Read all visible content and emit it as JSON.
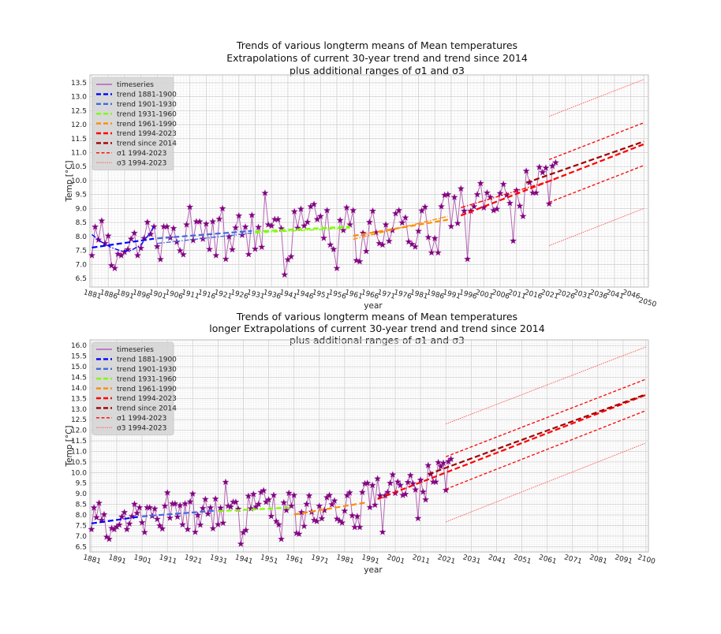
{
  "chart_data": [
    {
      "type": "line",
      "title": [
        "Trends of various longterm means of Mean temperatures",
        "Extrapolations of current 30-year trend and trend since 2014",
        "plus additional ranges of σ1 and σ3"
      ],
      "xlabel": "year",
      "ylabel": "Temp [°C]",
      "xlim": [
        1880.4,
        2051.4
      ],
      "ylim": [
        6.19,
        13.78
      ],
      "xticks": [
        1881,
        1886,
        1891,
        1896,
        1901,
        1906,
        1911,
        1916,
        1921,
        1926,
        1931,
        1936,
        1941,
        1946,
        1951,
        1956,
        1961,
        1966,
        1971,
        1976,
        1981,
        1986,
        1991,
        1996,
        2001,
        2006,
        2011,
        2016,
        2021,
        2026,
        2031,
        2036,
        2041,
        2046,
        2050
      ],
      "yticks": [
        6.5,
        7.0,
        7.5,
        8.0,
        8.5,
        9.0,
        9.5,
        10.0,
        10.5,
        11.0,
        11.5,
        12.0,
        12.5,
        13.0,
        13.5
      ],
      "grid": true,
      "legend_position": "top-left",
      "series_ref": "timeseries",
      "trends": [
        {
          "name": "trend 1881-1900",
          "color": "#0000ff",
          "style": "dashed",
          "x": [
            1881,
            1900
          ],
          "y": [
            7.6,
            7.92
          ]
        },
        {
          "color": "#0000ff",
          "style": "dashdot",
          "x": [
            1881,
            1884,
            1887,
            1890,
            1893,
            1896,
            1899,
            1900
          ],
          "y": [
            8.07,
            7.8,
            7.6,
            7.48,
            7.5,
            7.7,
            8.15,
            8.38
          ]
        },
        {
          "name": "trend 1901-1930",
          "color": "#4169e1",
          "style": "dashed",
          "x": [
            1901,
            1930
          ],
          "y": [
            7.93,
            8.2
          ]
        },
        {
          "color": "#4169e1",
          "style": "dashdot",
          "x": [
            1901,
            1930
          ],
          "y": [
            7.75,
            8.12
          ]
        },
        {
          "name": "trend 1931-1960",
          "color": "#7cfc00",
          "style": "dashed",
          "x": [
            1931,
            1960
          ],
          "y": [
            8.18,
            8.35
          ]
        },
        {
          "color": "#7cfc00",
          "style": "dashdot",
          "x": [
            1931,
            1960
          ],
          "y": [
            8.13,
            8.3
          ]
        },
        {
          "name": "trend 1961-1990",
          "color": "#ff8c00",
          "style": "dashed",
          "x": [
            1961,
            1990
          ],
          "y": [
            8.02,
            8.6
          ]
        },
        {
          "color": "#ff8c00",
          "style": "dashdot",
          "x": [
            1961,
            1990
          ],
          "y": [
            7.9,
            8.72
          ]
        },
        {
          "name": "trend 1994-2023",
          "color": "#ff0000",
          "style": "dashed",
          "x": [
            1994,
            2050
          ],
          "y": [
            8.75,
            11.3
          ]
        },
        {
          "color": "#ff0000",
          "style": "dashdot",
          "x": [
            1994,
            2023
          ],
          "y": [
            9.03,
            10.05
          ]
        },
        {
          "name": "trend since 2014",
          "color": "#a00000",
          "style": "dashed",
          "x": [
            2014,
            2050
          ],
          "y": [
            9.92,
            11.4
          ]
        },
        {
          "name": "σ1 1994-2023",
          "color": "#ff0000",
          "style": "sigma1",
          "x": [
            2021,
            2050
          ],
          "y": [
            10.75,
            12.07
          ]
        },
        {
          "color": "#ff0000",
          "style": "sigma1",
          "x": [
            2021,
            2050
          ],
          "y": [
            9.22,
            10.54
          ]
        },
        {
          "name": "σ3 1994-2023",
          "color": "#ff5050",
          "style": "sigma3",
          "x": [
            2021,
            2050
          ],
          "y": [
            12.3,
            13.62
          ]
        },
        {
          "color": "#ff5050",
          "style": "sigma3",
          "x": [
            2021,
            2050
          ],
          "y": [
            7.67,
            9.0
          ]
        }
      ]
    },
    {
      "type": "line",
      "title": [
        "Trends of various longterm means of Mean temperatures",
        "longer Extrapolations of current 30-year trend and trend since 2014",
        "plus additional ranges of σ1 and σ3"
      ],
      "xlabel": "year",
      "ylabel": "Temp [°C]",
      "xlim": [
        1880.4,
        2101
      ],
      "ylim": [
        6.25,
        16.27
      ],
      "xticks": [
        1881,
        1891,
        1901,
        1911,
        1921,
        1931,
        1941,
        1951,
        1961,
        1971,
        1981,
        1991,
        2001,
        2011,
        2021,
        2031,
        2041,
        2051,
        2061,
        2071,
        2081,
        2091,
        2100
      ],
      "yticks": [
        6.5,
        7.0,
        7.5,
        8.0,
        8.5,
        9.0,
        9.5,
        10.0,
        10.5,
        11.0,
        11.5,
        12.0,
        12.5,
        13.0,
        13.5,
        14.0,
        14.5,
        15.0,
        15.5,
        16.0
      ],
      "grid": true,
      "legend_position": "top-left",
      "series_ref": "timeseries",
      "trends": [
        {
          "name": "trend 1881-1900",
          "color": "#0000ff",
          "style": "dashed",
          "x": [
            1881,
            1900
          ],
          "y": [
            7.6,
            7.92
          ]
        },
        {
          "name": "trend 1901-1930",
          "color": "#4169e1",
          "style": "dashed",
          "x": [
            1901,
            1930
          ],
          "y": [
            7.93,
            8.2
          ]
        },
        {
          "name": "trend 1931-1960",
          "color": "#7cfc00",
          "style": "dashed",
          "x": [
            1931,
            1960
          ],
          "y": [
            8.18,
            8.35
          ]
        },
        {
          "name": "trend 1961-1990",
          "color": "#ff8c00",
          "style": "dashed",
          "x": [
            1961,
            1990
          ],
          "y": [
            8.02,
            8.6
          ]
        },
        {
          "name": "trend 1994-2023",
          "color": "#ff0000",
          "style": "dashed",
          "x": [
            1994,
            2100
          ],
          "y": [
            8.75,
            13.67
          ]
        },
        {
          "name": "trend since 2014",
          "color": "#a00000",
          "style": "dashed",
          "x": [
            2014,
            2100
          ],
          "y": [
            9.92,
            13.7
          ]
        },
        {
          "name": "σ1 1994-2023",
          "color": "#ff0000",
          "style": "sigma1",
          "x": [
            2021,
            2100
          ],
          "y": [
            10.75,
            14.41
          ]
        },
        {
          "color": "#ff0000",
          "style": "sigma1",
          "x": [
            2021,
            2100
          ],
          "y": [
            9.22,
            12.93
          ]
        },
        {
          "name": "σ3 1994-2023",
          "color": "#ff5050",
          "style": "sigma3",
          "x": [
            2021,
            2100
          ],
          "y": [
            12.3,
            15.94
          ]
        },
        {
          "color": "#ff5050",
          "style": "sigma3",
          "x": [
            2021,
            2100
          ],
          "y": [
            7.67,
            11.4
          ]
        }
      ]
    }
  ],
  "timeseries": {
    "name": "timeseries",
    "color": "#800080",
    "x": [
      1881,
      1882,
      1883,
      1884,
      1885,
      1886,
      1887,
      1888,
      1889,
      1890,
      1891,
      1892,
      1893,
      1894,
      1895,
      1896,
      1897,
      1898,
      1899,
      1900,
      1901,
      1902,
      1903,
      1904,
      1905,
      1906,
      1907,
      1908,
      1909,
      1910,
      1911,
      1912,
      1913,
      1914,
      1915,
      1916,
      1917,
      1918,
      1919,
      1920,
      1921,
      1922,
      1923,
      1924,
      1925,
      1926,
      1927,
      1928,
      1929,
      1930,
      1931,
      1932,
      1933,
      1934,
      1935,
      1936,
      1937,
      1938,
      1939,
      1940,
      1941,
      1942,
      1943,
      1944,
      1945,
      1946,
      1947,
      1948,
      1949,
      1950,
      1951,
      1952,
      1953,
      1954,
      1955,
      1956,
      1957,
      1958,
      1959,
      1960,
      1961,
      1962,
      1963,
      1964,
      1965,
      1966,
      1967,
      1968,
      1969,
      1970,
      1971,
      1972,
      1973,
      1974,
      1975,
      1976,
      1977,
      1978,
      1979,
      1980,
      1981,
      1982,
      1983,
      1984,
      1985,
      1986,
      1987,
      1988,
      1989,
      1990,
      1991,
      1992,
      1993,
      1994,
      1995,
      1996,
      1997,
      1998,
      1999,
      2000,
      2001,
      2002,
      2003,
      2004,
      2005,
      2006,
      2007,
      2008,
      2009,
      2010,
      2011,
      2012,
      2013,
      2014,
      2015,
      2016,
      2017,
      2018,
      2019,
      2020,
      2021,
      2022,
      2023
    ],
    "y": [
      7.32,
      8.34,
      7.88,
      8.56,
      7.75,
      8.02,
      6.96,
      6.86,
      7.37,
      7.32,
      7.44,
      7.53,
      7.91,
      8.12,
      7.32,
      7.58,
      7.93,
      8.51,
      8.08,
      8.35,
      7.64,
      7.18,
      8.35,
      8.35,
      7.95,
      8.29,
      7.8,
      7.49,
      7.35,
      8.42,
      9.05,
      7.86,
      8.53,
      8.53,
      7.91,
      8.45,
      7.54,
      8.53,
      7.32,
      8.62,
      9.0,
      7.19,
      7.99,
      7.53,
      8.31,
      8.74,
      8.05,
      8.34,
      7.36,
      8.76,
      7.55,
      8.33,
      7.62,
      9.55,
      8.42,
      8.38,
      8.61,
      8.61,
      8.28,
      6.63,
      7.17,
      7.28,
      8.89,
      8.3,
      8.98,
      8.38,
      8.51,
      9.07,
      9.15,
      8.61,
      8.72,
      7.94,
      8.93,
      7.7,
      7.54,
      6.86,
      8.58,
      8.22,
      9.03,
      8.42,
      8.93,
      7.14,
      7.1,
      8.12,
      7.47,
      8.51,
      8.91,
      8.14,
      7.75,
      7.7,
      8.42,
      7.83,
      8.22,
      8.82,
      8.93,
      8.49,
      8.67,
      7.81,
      7.72,
      7.63,
      8.19,
      8.92,
      9.05,
      7.97,
      7.42,
      7.93,
      7.42,
      9.07,
      9.48,
      9.5,
      8.36,
      9.4,
      8.47,
      9.71,
      8.91,
      7.19,
      8.91,
      9.07,
      9.5,
      9.9,
      9.03,
      9.56,
      9.4,
      8.93,
      8.98,
      9.54,
      9.87,
      9.48,
      9.19,
      7.84,
      9.65,
      9.09,
      8.72,
      10.34,
      9.93,
      9.56,
      9.56,
      10.48,
      10.29,
      10.45,
      9.17,
      10.52,
      10.64
    ]
  }
}
